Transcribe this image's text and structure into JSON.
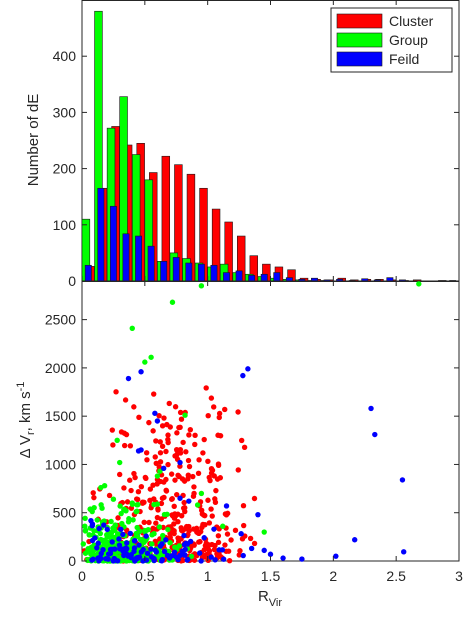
{
  "chart_data": [
    {
      "type": "bar",
      "ylabel": "Number of dE",
      "xlim": [
        0,
        3
      ],
      "ylim": [
        0,
        500
      ],
      "yticks": [
        0,
        100,
        200,
        300,
        400
      ],
      "bin_width": 0.1,
      "bins": [
        0.0,
        0.1,
        0.2,
        0.3,
        0.4,
        0.5,
        0.6,
        0.7,
        0.8,
        0.9,
        1.0,
        1.1,
        1.2,
        1.3,
        1.4,
        1.5,
        1.6,
        1.7,
        1.8,
        1.9,
        2.0,
        2.1,
        2.2,
        2.3,
        2.4,
        2.5,
        2.6,
        2.7,
        2.8,
        2.9
      ],
      "legend_position": "top-right",
      "series": [
        {
          "name": "Cluster",
          "color": "#ff0000",
          "values": [
            26,
            165,
            275,
            242,
            245,
            193,
            222,
            207,
            190,
            165,
            128,
            105,
            80,
            45,
            30,
            25,
            20,
            5,
            3,
            2,
            5,
            2,
            3,
            3,
            2,
            1,
            2,
            0,
            1,
            0
          ]
        },
        {
          "name": "Group",
          "color": "#00ff00",
          "values": [
            110,
            480,
            272,
            328,
            225,
            180,
            35,
            50,
            40,
            32,
            25,
            30,
            15,
            12,
            8,
            5,
            3,
            2,
            1,
            1,
            0,
            0,
            0,
            0,
            0,
            0,
            0,
            0,
            0,
            0
          ]
        },
        {
          "name": "Feild",
          "color": "#0000ff",
          "values": [
            28,
            165,
            133,
            84,
            80,
            62,
            35,
            42,
            32,
            30,
            28,
            15,
            18,
            10,
            12,
            15,
            6,
            3,
            5,
            2,
            3,
            1,
            4,
            2,
            6,
            2,
            0,
            0,
            0,
            1
          ]
        }
      ]
    },
    {
      "type": "scatter",
      "xlabel_main": "R",
      "xlabel_sub": "Vir",
      "ylabel": "Δ V, km s",
      "xlim": [
        0,
        3
      ],
      "ylim": [
        0,
        2900
      ],
      "xticks": [
        0,
        0.5,
        1,
        1.5,
        2,
        2.5,
        3
      ],
      "xtick_labels": [
        "0",
        "0.5",
        "1",
        "1.5",
        "2",
        "2.5",
        "3"
      ],
      "yticks": [
        0,
        500,
        1000,
        1500,
        2000,
        2500
      ],
      "series": [
        {
          "name": "Cluster",
          "color": "#ff0000",
          "points": []
        },
        {
          "name": "Group",
          "color": "#00ff00",
          "points": [
            [
              0.95,
              2850
            ],
            [
              2.68,
              2870
            ],
            [
              0.72,
              2680
            ],
            [
              0.4,
              2410
            ],
            [
              0.55,
              2110
            ],
            [
              0.5,
              2060
            ],
            [
              0.28,
              1250
            ],
            [
              0.82,
              1510
            ],
            [
              0.3,
              1020
            ],
            [
              0.62,
              930
            ],
            [
              0.6,
              880
            ],
            [
              0.18,
              780
            ],
            [
              0.15,
              760
            ],
            [
              0.95,
              700
            ],
            [
              0.25,
              640
            ],
            [
              0.4,
              600
            ],
            [
              0.6,
              590
            ],
            [
              0.92,
              580
            ],
            [
              0.35,
              520
            ],
            [
              1.45,
              300
            ],
            [
              1.12,
              360
            ]
          ]
        },
        {
          "name": "Feild",
          "color": "#0000ff",
          "points": [
            [
              1.32,
              1990
            ],
            [
              0.47,
              1960
            ],
            [
              1.28,
              1920
            ],
            [
              0.37,
              1890
            ],
            [
              0.58,
              1530
            ],
            [
              2.3,
              1580
            ],
            [
              2.33,
              1310
            ],
            [
              0.6,
              1450
            ],
            [
              0.45,
              1140
            ],
            [
              0.47,
              1150
            ],
            [
              0.78,
              1020
            ],
            [
              0.65,
              960
            ],
            [
              0.78,
              650
            ],
            [
              0.85,
              620
            ],
            [
              2.55,
              840
            ],
            [
              1.15,
              570
            ],
            [
              1.4,
              480
            ],
            [
              2.17,
              220
            ],
            [
              2.56,
              95
            ],
            [
              2.02,
              50
            ],
            [
              1.75,
              20
            ],
            [
              1.6,
              30
            ],
            [
              1.5,
              70
            ],
            [
              1.45,
              110
            ],
            [
              1.35,
              130
            ],
            [
              1.05,
              330
            ],
            [
              0.45,
              300
            ]
          ]
        }
      ]
    }
  ]
}
